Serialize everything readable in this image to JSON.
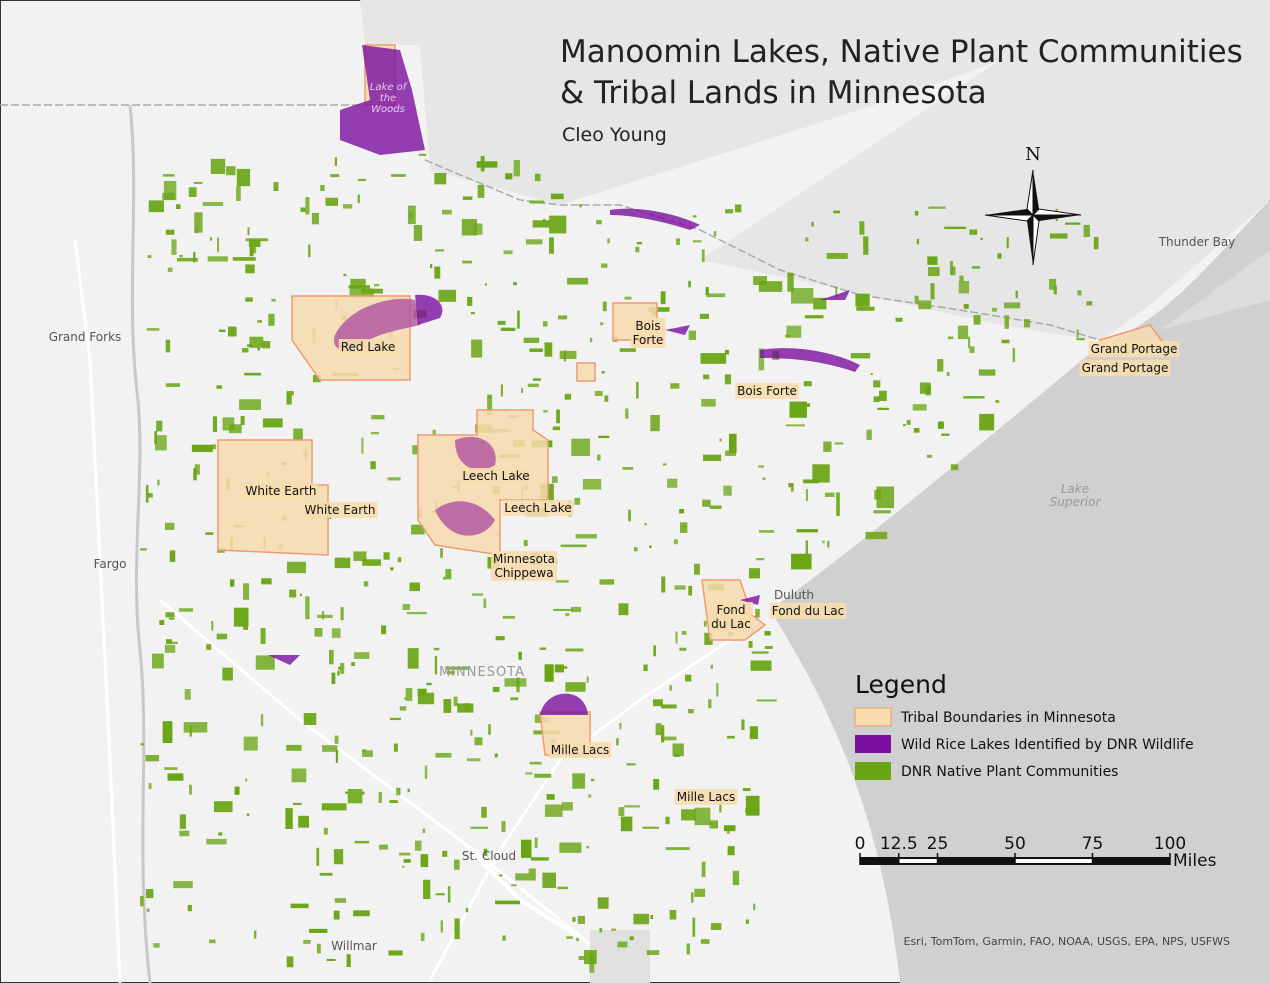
{
  "title": [
    "Manoomin Lakes, Native Plant Communities",
    "& Tribal Lands in Minnesota"
  ],
  "author": "Cleo Young",
  "north_arrow": "N",
  "place_labels": [
    {
      "lines": [
        "Grand Forks"
      ]
    },
    {
      "lines": [
        "Fargo"
      ]
    },
    {
      "lines": [
        "Thunder Bay"
      ]
    },
    {
      "lines": [
        "Duluth"
      ]
    },
    {
      "lines": [
        "St. Cloud"
      ]
    },
    {
      "lines": [
        "Willmar"
      ]
    },
    {
      "lines": [
        "Lake",
        "Superior"
      ]
    },
    {
      "lines": [
        "MINNESOTA"
      ]
    },
    {
      "lines": [
        "Lake of",
        "the",
        "Woods"
      ]
    }
  ],
  "tribal_labels": [
    {
      "lines": [
        "Red Lake"
      ]
    },
    {
      "lines": [
        "Bois",
        "Forte"
      ]
    },
    {
      "lines": [
        "Bois Forte"
      ]
    },
    {
      "lines": [
        "Grand Portage"
      ]
    },
    {
      "lines": [
        "Grand Portage"
      ]
    },
    {
      "lines": [
        "White Earth"
      ]
    },
    {
      "lines": [
        "White Earth"
      ]
    },
    {
      "lines": [
        "Leech Lake"
      ]
    },
    {
      "lines": [
        "Leech Lake"
      ]
    },
    {
      "lines": [
        "Minnesota",
        "Chippewa"
      ]
    },
    {
      "lines": [
        "Fond",
        "du Lac"
      ]
    },
    {
      "lines": [
        "Fond du Lac"
      ]
    },
    {
      "lines": [
        "Mille Lacs"
      ]
    },
    {
      "lines": [
        "Mille Lacs"
      ]
    }
  ],
  "legend": {
    "title": "Legend",
    "items": [
      {
        "label": "Tribal Boundaries in Minnesota",
        "color": "#f7dcae"
      },
      {
        "label": "Wild Rice Lakes Identified by DNR Wildlife",
        "color": "#7a0fa0"
      },
      {
        "label": "DNR Native Plant Communities",
        "color": "#6aa515"
      }
    ]
  },
  "scale_bar": {
    "ticks": [
      0,
      12.5,
      25,
      50,
      75,
      100
    ],
    "unit": "Miles"
  },
  "attribution": "Esri, TomTom, Garmin, FAO, NOAA, USGS, EPA, NPS, USFWS"
}
